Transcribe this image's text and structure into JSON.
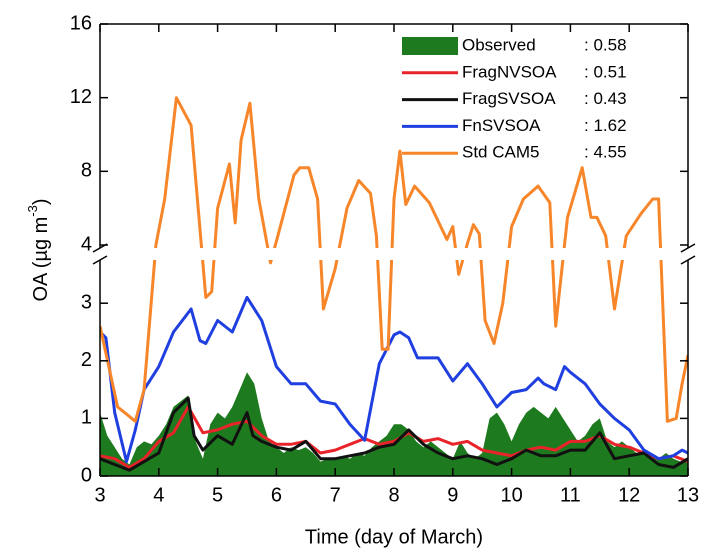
{
  "chart_data": {
    "type": "line",
    "xlabel": "Time (day of March)",
    "ylabel": [
      "OA (µg m",
      "-3",
      ")"
    ],
    "xlim": [
      3,
      13
    ],
    "xticks": [
      3,
      4,
      5,
      6,
      7,
      8,
      9,
      10,
      11,
      12,
      13
    ],
    "ylim": [
      0,
      16
    ],
    "yticks": [
      0,
      1,
      2,
      3,
      4,
      8,
      12,
      16
    ],
    "axis_break": [
      3.75,
      4
    ],
    "series": [
      {
        "name": "Observed",
        "stat_label": ": 0.58",
        "style": "area",
        "color": "#1e7a1e",
        "x": [
          3,
          3.125,
          3.25,
          3.375,
          3.5,
          3.625,
          3.75,
          3.875,
          4,
          4.125,
          4.25,
          4.375,
          4.5,
          4.625,
          4.75,
          4.875,
          5,
          5.125,
          5.25,
          5.375,
          5.5,
          5.625,
          5.75,
          5.875,
          6,
          6.125,
          6.25,
          6.375,
          6.5,
          6.625,
          6.75,
          6.875,
          7,
          7.125,
          7.25,
          7.375,
          7.5,
          7.625,
          7.75,
          7.875,
          8,
          8.125,
          8.25,
          8.375,
          8.5,
          8.625,
          8.75,
          8.875,
          9,
          9.125,
          9.25,
          9.375,
          9.5,
          9.625,
          9.75,
          9.875,
          10,
          10.125,
          10.25,
          10.375,
          10.5,
          10.625,
          10.75,
          10.875,
          11,
          11.125,
          11.25,
          11.375,
          11.5,
          11.625,
          11.75,
          11.875,
          12,
          12.125,
          12.25,
          12.375,
          12.5,
          12.625,
          12.75,
          12.875,
          13
        ],
        "values": [
          1.1,
          0.7,
          0.5,
          0.3,
          0.2,
          0.5,
          0.6,
          0.55,
          0.7,
          0.9,
          1.2,
          1.3,
          1.4,
          0.6,
          0.3,
          0.9,
          1.1,
          1.0,
          1.2,
          1.5,
          1.8,
          1.6,
          1.0,
          0.6,
          0.5,
          0.4,
          0.5,
          0.45,
          0.5,
          0.4,
          0.25,
          0.3,
          0.3,
          0.35,
          0.3,
          0.4,
          0.35,
          0.5,
          0.6,
          0.7,
          0.9,
          0.9,
          0.8,
          0.6,
          0.5,
          0.6,
          0.5,
          0.4,
          0.3,
          0.6,
          0.4,
          0.3,
          0.4,
          1.0,
          1.1,
          0.9,
          0.6,
          0.9,
          1.1,
          1.2,
          1.1,
          1.0,
          1.2,
          1.0,
          0.8,
          0.6,
          0.7,
          0.9,
          1.0,
          0.6,
          0.5,
          0.6,
          0.5,
          0.4,
          0.45,
          0.35,
          0.3,
          0.4,
          0.3,
          0.25,
          0.3
        ]
      },
      {
        "name": "FragNVSOA",
        "stat_label": ": 0.51",
        "style": "line",
        "color": "#e8242a",
        "x": [
          3,
          3.25,
          3.5,
          3.75,
          4,
          4.25,
          4.5,
          4.75,
          5,
          5.25,
          5.5,
          5.75,
          6,
          6.25,
          6.5,
          6.75,
          7,
          7.25,
          7.5,
          7.75,
          8,
          8.25,
          8.5,
          8.75,
          9,
          9.25,
          9.5,
          9.75,
          10,
          10.25,
          10.5,
          10.75,
          11,
          11.25,
          11.5,
          11.75,
          12,
          12.25,
          12.5,
          12.75,
          13
        ],
        "values": [
          0.35,
          0.3,
          0.15,
          0.3,
          0.6,
          0.75,
          1.2,
          0.75,
          0.8,
          0.9,
          0.95,
          0.7,
          0.55,
          0.55,
          0.6,
          0.4,
          0.45,
          0.55,
          0.65,
          0.55,
          0.6,
          0.75,
          0.6,
          0.65,
          0.55,
          0.6,
          0.45,
          0.4,
          0.35,
          0.45,
          0.5,
          0.45,
          0.6,
          0.6,
          0.7,
          0.55,
          0.5,
          0.4,
          0.3,
          0.35,
          0.25
        ]
      },
      {
        "name": "FragSVSOA",
        "stat_label": ": 0.43",
        "style": "line",
        "color": "#111111",
        "x": [
          3,
          3.25,
          3.5,
          3.75,
          4,
          4.25,
          4.5,
          4.6,
          4.75,
          5,
          5.25,
          5.5,
          5.6,
          5.75,
          6,
          6.25,
          6.5,
          6.75,
          7,
          7.25,
          7.5,
          7.75,
          8,
          8.25,
          8.5,
          8.75,
          9,
          9.25,
          9.5,
          9.75,
          10,
          10.25,
          10.5,
          10.75,
          11,
          11.25,
          11.5,
          11.75,
          12,
          12.25,
          12.5,
          12.75,
          13
        ],
        "values": [
          0.3,
          0.2,
          0.1,
          0.25,
          0.4,
          1.1,
          1.35,
          0.7,
          0.45,
          0.7,
          0.55,
          1.1,
          0.7,
          0.6,
          0.5,
          0.45,
          0.6,
          0.3,
          0.3,
          0.35,
          0.4,
          0.5,
          0.55,
          0.8,
          0.55,
          0.4,
          0.3,
          0.35,
          0.3,
          0.2,
          0.3,
          0.45,
          0.35,
          0.35,
          0.45,
          0.45,
          0.75,
          0.3,
          0.35,
          0.4,
          0.2,
          0.15,
          0.3
        ]
      },
      {
        "name": "FnSVSOA",
        "stat_label": ": 1.62",
        "style": "line",
        "color": "#1f3fe0",
        "x": [
          3,
          3.1,
          3.25,
          3.45,
          3.6,
          3.75,
          4,
          4.25,
          4.55,
          4.7,
          4.8,
          5,
          5.25,
          5.5,
          5.75,
          6,
          6.25,
          6.5,
          6.75,
          7,
          7.25,
          7.5,
          7.75,
          8,
          8.1,
          8.25,
          8.4,
          8.75,
          9,
          9.25,
          9.5,
          9.75,
          10,
          10.25,
          10.45,
          10.55,
          10.75,
          10.9,
          11,
          11.25,
          11.5,
          11.75,
          12,
          12.25,
          12.5,
          12.75,
          12.9,
          13
        ],
        "values": [
          2.5,
          2.4,
          1.1,
          0.25,
          0.8,
          1.5,
          1.9,
          2.5,
          2.9,
          2.35,
          2.3,
          2.7,
          2.5,
          3.1,
          2.7,
          1.9,
          1.6,
          1.6,
          1.3,
          1.25,
          0.9,
          0.62,
          1.95,
          2.45,
          2.5,
          2.4,
          2.05,
          2.05,
          1.65,
          1.95,
          1.6,
          1.2,
          1.45,
          1.5,
          1.7,
          1.6,
          1.5,
          1.9,
          1.8,
          1.6,
          1.25,
          1.0,
          0.8,
          0.45,
          0.3,
          0.35,
          0.45,
          0.4
        ]
      },
      {
        "name": "Std CAM5",
        "stat_label": ": 4.55",
        "style": "line",
        "color": "#f7862a",
        "x": [
          3,
          3.3,
          3.6,
          3.75,
          3.95,
          4.1,
          4.3,
          4.55,
          4.8,
          4.9,
          5,
          5.2,
          5.3,
          5.4,
          5.55,
          5.7,
          5.9,
          6,
          6.3,
          6.4,
          6.55,
          6.7,
          6.8,
          7,
          7.2,
          7.4,
          7.6,
          7.7,
          7.8,
          7.9,
          8,
          8.1,
          8.2,
          8.35,
          8.6,
          8.9,
          9,
          9.1,
          9.25,
          9.35,
          9.45,
          9.55,
          9.7,
          9.85,
          10,
          10.2,
          10.45,
          10.65,
          10.75,
          10.95,
          11.2,
          11.35,
          11.45,
          11.6,
          11.75,
          11.95,
          12.2,
          12.4,
          12.5,
          12.65,
          12.8,
          12.9,
          13
        ],
        "values": [
          2.6,
          1.2,
          0.95,
          1.5,
          4.0,
          6.5,
          12.0,
          10.5,
          3.1,
          3.2,
          6.0,
          8.4,
          5.2,
          9.7,
          11.7,
          6.5,
          3.7,
          4.2,
          7.8,
          8.2,
          8.2,
          6.5,
          2.9,
          3.6,
          6.0,
          7.5,
          6.8,
          4.5,
          2.2,
          2.2,
          6.5,
          9.1,
          6.2,
          7.2,
          6.3,
          4.3,
          5.0,
          3.5,
          4.1,
          5.1,
          4.6,
          2.7,
          2.3,
          3.0,
          5.0,
          6.5,
          7.2,
          6.3,
          2.6,
          5.5,
          8.2,
          5.5,
          5.5,
          4.5,
          2.9,
          4.5,
          5.7,
          6.5,
          6.5,
          0.95,
          1.0,
          1.6,
          2.1
        ]
      }
    ]
  }
}
